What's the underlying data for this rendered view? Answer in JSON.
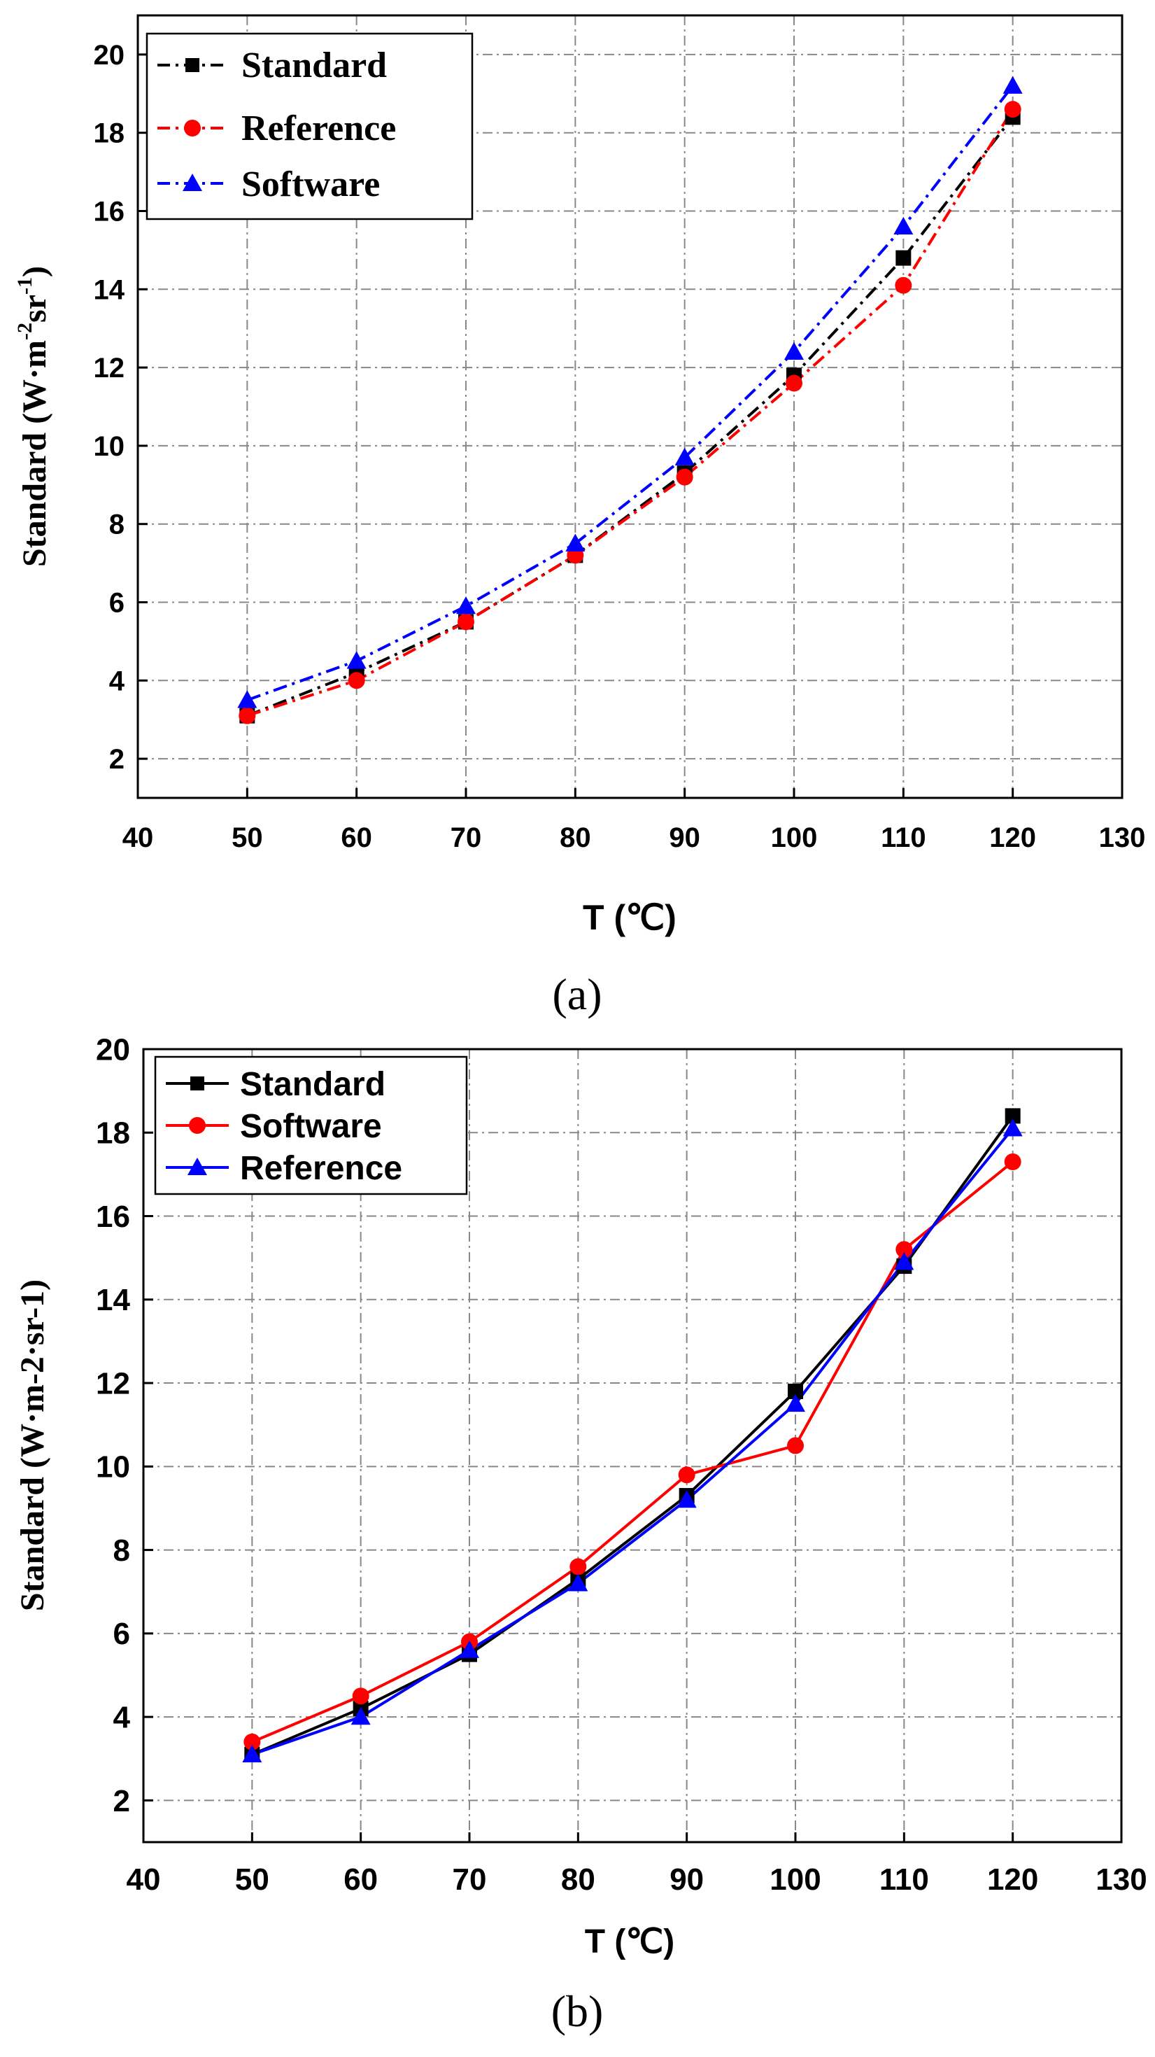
{
  "chart_data": [
    {
      "type": "line",
      "panel_label": "(a)",
      "xlabel": "T (℃)",
      "ylabel_main": "Standard (W·m",
      "ylabel_sup1": "-2",
      "ylabel_mid": "sr",
      "ylabel_sup2": "-1",
      "ylabel_end": ")",
      "xlim": [
        40,
        130
      ],
      "ylim": [
        1,
        21
      ],
      "xticks": [
        40,
        50,
        60,
        70,
        80,
        90,
        100,
        110,
        120,
        130
      ],
      "yticks": [
        2,
        4,
        6,
        8,
        10,
        12,
        14,
        16,
        18,
        20
      ],
      "grid": true,
      "legend_position": "top-left",
      "x": [
        50,
        60,
        70,
        80,
        90,
        100,
        110,
        120
      ],
      "series": [
        {
          "name": "Standard",
          "color": "#000000",
          "marker": "square",
          "line": "dashdot",
          "values": [
            3.1,
            4.2,
            5.5,
            7.2,
            9.3,
            11.8,
            14.8,
            18.4
          ]
        },
        {
          "name": "Reference",
          "color": "#ff0000",
          "marker": "circle",
          "line": "dashdot",
          "values": [
            3.1,
            4.0,
            5.5,
            7.2,
            9.2,
            11.6,
            14.1,
            18.6
          ]
        },
        {
          "name": "Software",
          "color": "#0000ff",
          "marker": "triangle",
          "line": "dashdot",
          "values": [
            3.5,
            4.5,
            5.9,
            7.5,
            9.7,
            12.4,
            15.6,
            19.2
          ]
        }
      ]
    },
    {
      "type": "line",
      "panel_label": "(b)",
      "xlabel": "T (℃)",
      "ylabel_main": "Standard (W·m-2·sr-1)",
      "xlim": [
        40,
        130
      ],
      "ylim": [
        1,
        20
      ],
      "xticks": [
        40,
        50,
        60,
        70,
        80,
        90,
        100,
        110,
        120,
        130
      ],
      "yticks": [
        2,
        4,
        6,
        8,
        10,
        12,
        14,
        16,
        18,
        20
      ],
      "grid": true,
      "legend_position": "top-left",
      "x": [
        50,
        60,
        70,
        80,
        90,
        100,
        110,
        120
      ],
      "series": [
        {
          "name": "Standard",
          "color": "#000000",
          "marker": "square",
          "line": "solid",
          "values": [
            3.1,
            4.2,
            5.5,
            7.3,
            9.3,
            11.8,
            14.8,
            18.4
          ]
        },
        {
          "name": "Software",
          "color": "#ff0000",
          "marker": "circle",
          "line": "solid",
          "values": [
            3.4,
            4.5,
            5.8,
            7.6,
            9.8,
            10.5,
            15.2,
            17.3
          ]
        },
        {
          "name": "Reference",
          "color": "#0000ff",
          "marker": "triangle",
          "line": "solid",
          "values": [
            3.1,
            4.0,
            5.6,
            7.2,
            9.2,
            11.5,
            14.9,
            18.1
          ]
        }
      ]
    }
  ]
}
